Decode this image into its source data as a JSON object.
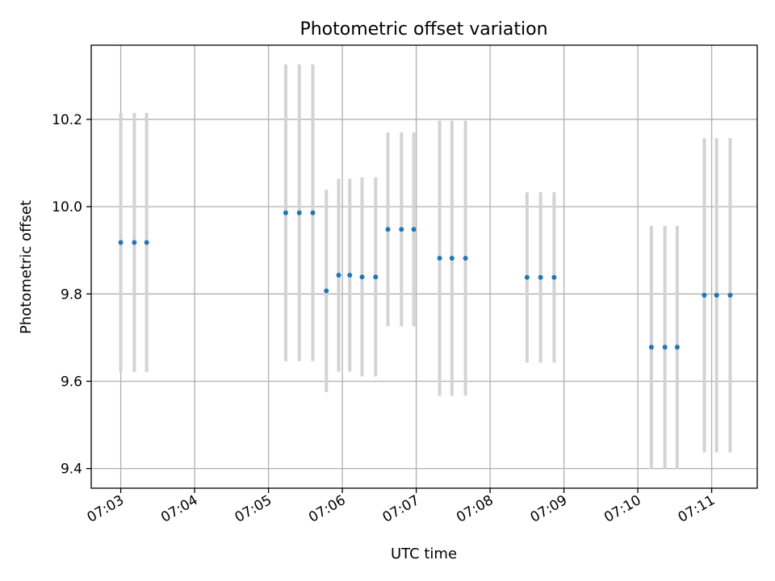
{
  "chart_data": {
    "type": "scatter",
    "title": "Photometric offset variation",
    "xlabel": "UTC time",
    "ylabel": "Photometric offset",
    "grid": true,
    "x_ticks": [
      "07:03",
      "07:04",
      "07:05",
      "07:06",
      "07:07",
      "07:08",
      "07:09",
      "07:10",
      "07:11"
    ],
    "y_ticks": [
      "9.4",
      "9.6",
      "9.8",
      "10.0",
      "10.2"
    ],
    "xlim": [
      "07:02:36",
      "07:11:37"
    ],
    "ylim": [
      9.355,
      10.37
    ],
    "series": [
      {
        "points": [
          {
            "x": "07:03:00",
            "y": 9.918,
            "err": 0.297
          },
          {
            "x": "07:03:11",
            "y": 9.918,
            "err": 0.297
          },
          {
            "x": "07:03:21",
            "y": 9.918,
            "err": 0.297
          },
          {
            "x": "07:05:14",
            "y": 9.986,
            "err": 0.34
          },
          {
            "x": "07:05:25",
            "y": 9.986,
            "err": 0.34
          },
          {
            "x": "07:05:36",
            "y": 9.986,
            "err": 0.34
          },
          {
            "x": "07:05:47",
            "y": 9.807,
            "err": 0.232
          },
          {
            "x": "07:05:57",
            "y": 9.843,
            "err": 0.221
          },
          {
            "x": "07:06:06",
            "y": 9.843,
            "err": 0.221
          },
          {
            "x": "07:06:16",
            "y": 9.839,
            "err": 0.228
          },
          {
            "x": "07:06:27",
            "y": 9.839,
            "err": 0.228
          },
          {
            "x": "07:06:37",
            "y": 9.948,
            "err": 0.222
          },
          {
            "x": "07:06:48",
            "y": 9.948,
            "err": 0.222
          },
          {
            "x": "07:06:58",
            "y": 9.948,
            "err": 0.222
          },
          {
            "x": "07:07:19",
            "y": 9.882,
            "err": 0.315
          },
          {
            "x": "07:07:29",
            "y": 9.882,
            "err": 0.315
          },
          {
            "x": "07:07:40",
            "y": 9.882,
            "err": 0.315
          },
          {
            "x": "07:08:30",
            "y": 9.838,
            "err": 0.195
          },
          {
            "x": "07:08:41",
            "y": 9.838,
            "err": 0.195
          },
          {
            "x": "07:08:52",
            "y": 9.838,
            "err": 0.195
          },
          {
            "x": "07:10:11",
            "y": 9.678,
            "err": 0.278
          },
          {
            "x": "07:10:22",
            "y": 9.678,
            "err": 0.278
          },
          {
            "x": "07:10:32",
            "y": 9.678,
            "err": 0.278
          },
          {
            "x": "07:10:54",
            "y": 9.797,
            "err": 0.36
          },
          {
            "x": "07:11:04",
            "y": 9.797,
            "err": 0.36
          },
          {
            "x": "07:11:15",
            "y": 9.797,
            "err": 0.36
          }
        ]
      }
    ]
  }
}
